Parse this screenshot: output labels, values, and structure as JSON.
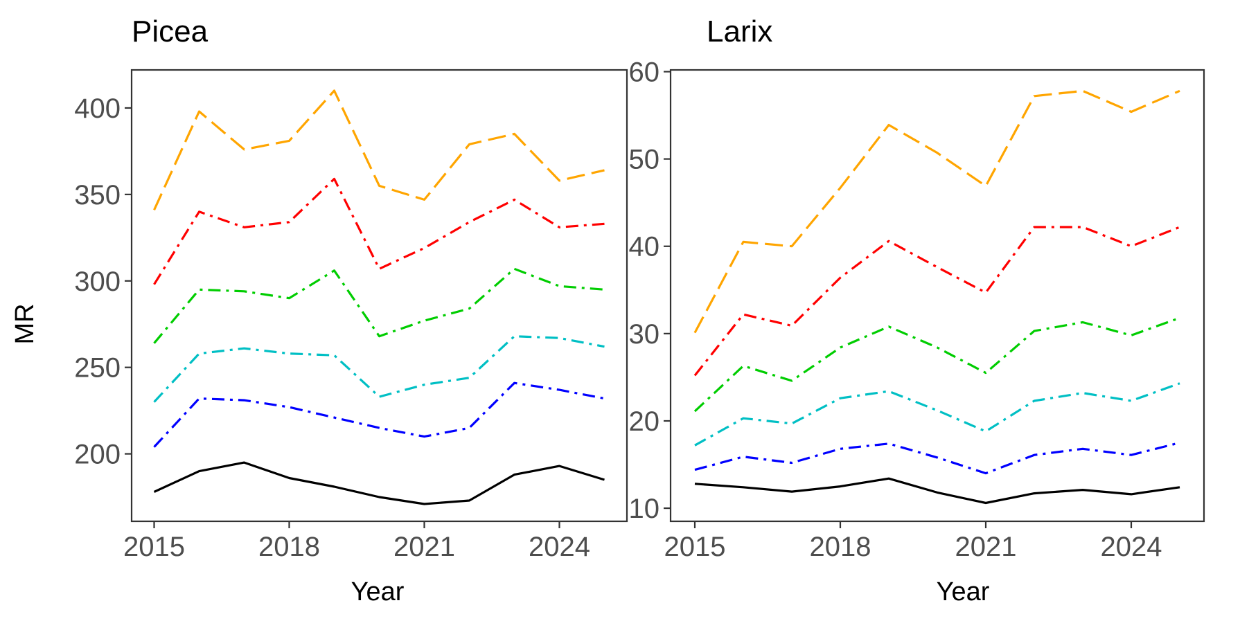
{
  "chart_data": [
    {
      "type": "line",
      "title": "Picea",
      "xlabel": "Year",
      "ylabel": "MR",
      "x": [
        2015,
        2016,
        2017,
        2018,
        2019,
        2020,
        2021,
        2022,
        2023,
        2024,
        2025
      ],
      "xticks": [
        2015,
        2018,
        2021,
        2024
      ],
      "yticks": [
        200,
        250,
        300,
        350,
        400
      ],
      "xlim": [
        2014.5,
        2025.5
      ],
      "ylim": [
        161,
        422
      ],
      "grid": false,
      "series": [
        {
          "color": "#000000",
          "dash": "solid",
          "values": [
            178,
            190,
            195,
            186,
            181,
            175,
            171,
            173,
            188,
            193,
            185
          ]
        },
        {
          "color": "#0000ff",
          "dash": "dashdot",
          "values": [
            204,
            232,
            231,
            227,
            221,
            215,
            210,
            215,
            241,
            237,
            232
          ]
        },
        {
          "color": "#00bfc4",
          "dash": "dashdot",
          "values": [
            230,
            258,
            261,
            258,
            257,
            233,
            240,
            244,
            268,
            267,
            262
          ]
        },
        {
          "color": "#00cd00",
          "dash": "dashdot",
          "values": [
            264,
            295,
            294,
            290,
            306,
            268,
            277,
            284,
            307,
            297,
            295
          ]
        },
        {
          "color": "#ff0000",
          "dash": "dashdot",
          "values": [
            298,
            340,
            331,
            334,
            359,
            307,
            319,
            334,
            347,
            331,
            333
          ]
        },
        {
          "color": "#ffa500",
          "dash": "longdash",
          "values": [
            341,
            398,
            376,
            381,
            410,
            355,
            347,
            379,
            385,
            358,
            364
          ]
        }
      ]
    },
    {
      "type": "line",
      "title": "Larix",
      "xlabel": "Year",
      "ylabel": "",
      "x": [
        2015,
        2016,
        2017,
        2018,
        2019,
        2020,
        2021,
        2022,
        2023,
        2024,
        2025
      ],
      "xticks": [
        2015,
        2018,
        2021,
        2024
      ],
      "yticks": [
        10,
        20,
        30,
        40,
        50,
        60
      ],
      "xlim": [
        2014.5,
        2025.5
      ],
      "ylim": [
        8.5,
        60.2
      ],
      "grid": false,
      "series": [
        {
          "color": "#000000",
          "dash": "solid",
          "values": [
            12.8,
            12.4,
            11.9,
            12.5,
            13.4,
            11.8,
            10.6,
            11.7,
            12.1,
            11.6,
            12.4
          ]
        },
        {
          "color": "#0000ff",
          "dash": "dashdot",
          "values": [
            14.4,
            15.9,
            15.2,
            16.8,
            17.4,
            15.8,
            14.0,
            16.1,
            16.8,
            16.1,
            17.5
          ]
        },
        {
          "color": "#00bfc4",
          "dash": "dashdot",
          "values": [
            17.2,
            20.3,
            19.7,
            22.6,
            23.4,
            21.2,
            18.8,
            22.3,
            23.2,
            22.3,
            24.3
          ]
        },
        {
          "color": "#00cd00",
          "dash": "dashdot",
          "values": [
            21.1,
            26.3,
            24.6,
            28.4,
            30.8,
            28.4,
            25.5,
            30.3,
            31.3,
            29.8,
            31.8
          ]
        },
        {
          "color": "#ff0000",
          "dash": "dashdot",
          "values": [
            25.2,
            32.2,
            30.9,
            36.4,
            40.6,
            37.6,
            34.7,
            42.2,
            42.2,
            40.0,
            42.2
          ]
        },
        {
          "color": "#ffa500",
          "dash": "longdash",
          "values": [
            30.1,
            40.5,
            40.0,
            46.7,
            53.9,
            50.7,
            46.9,
            57.2,
            57.8,
            55.4,
            57.8
          ]
        }
      ]
    }
  ]
}
